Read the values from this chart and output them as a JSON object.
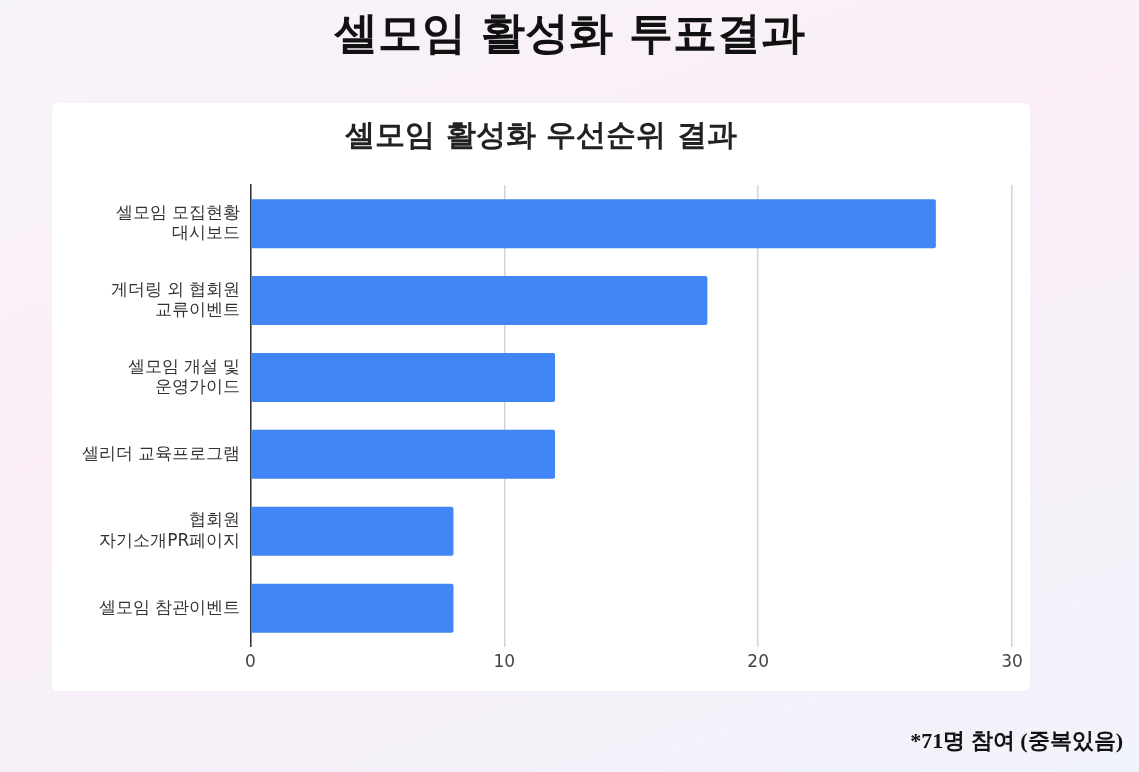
{
  "chart_data": {
    "type": "bar",
    "orientation": "horizontal",
    "title": "셀모임 활성화 투표결과",
    "subtitle": "셀모임 활성화 우선순위 결과",
    "categories": [
      "셀모임 모집현황\n대시보드",
      "게더링 외 협회원\n교류이벤트",
      "셀모임 개설 및\n운영가이드",
      "셀리더 교육프로그램",
      "협회원\n자기소개PR페이지",
      "셀모임 참관이벤트"
    ],
    "values": [
      27,
      18,
      12,
      12,
      8,
      8
    ],
    "color": "#4285f4",
    "xlim": [
      0,
      30
    ],
    "xticks": [
      0,
      10,
      20,
      30
    ],
    "grid": "x",
    "legend": false,
    "annotations": [
      "*71명 참여 (중복있음)"
    ]
  }
}
